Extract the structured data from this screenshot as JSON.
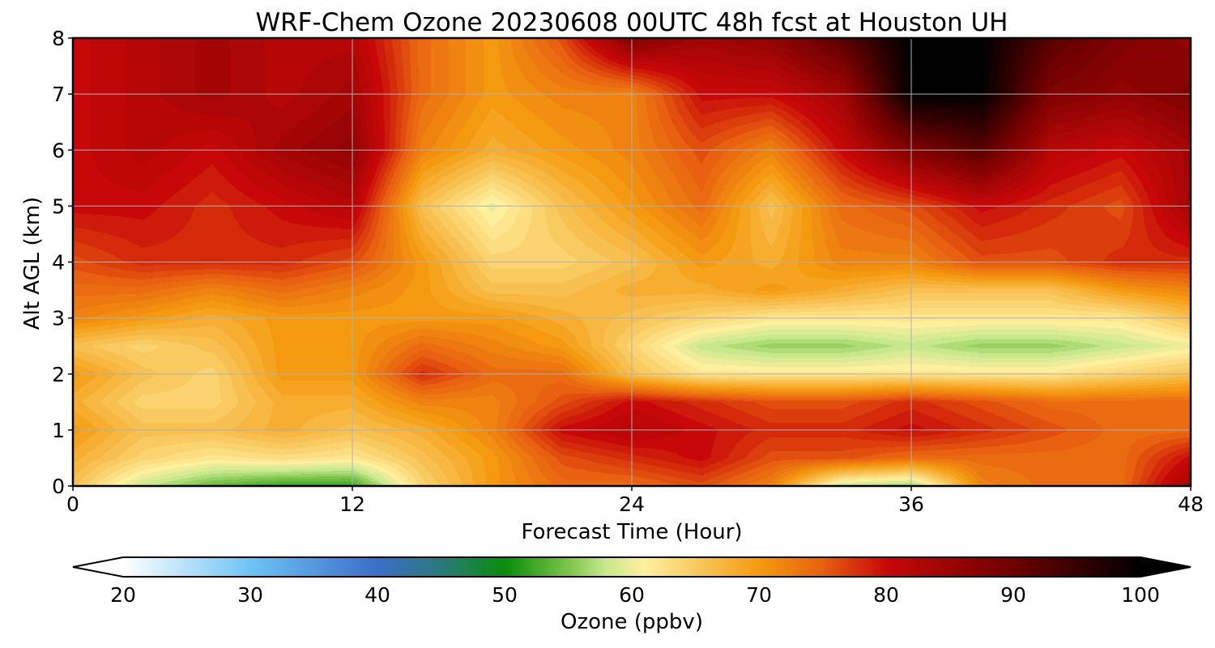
{
  "chart_data": {
    "type": "heatmap",
    "title": "WRF-Chem Ozone  20230608 00UTC 48h fcst at Houston UH",
    "xlabel": "Forecast Time (Hour)",
    "ylabel": "Alt AGL (km)",
    "xlim": [
      0,
      48
    ],
    "ylim": [
      0,
      8
    ],
    "xticks": [
      0,
      12,
      24,
      36,
      48
    ],
    "yticks": [
      0,
      1,
      2,
      3,
      4,
      5,
      6,
      7,
      8
    ],
    "grid": true,
    "x": [
      0,
      3,
      6,
      9,
      12,
      15,
      18,
      21,
      24,
      27,
      30,
      33,
      36,
      39,
      42,
      45,
      48
    ],
    "y": [
      0,
      0.5,
      1,
      1.5,
      2,
      2.5,
      3,
      3.5,
      4,
      5,
      6,
      7,
      8
    ],
    "z": [
      [
        66,
        58,
        54,
        52,
        52,
        64,
        70,
        74,
        74,
        76,
        72,
        58,
        56,
        72,
        74,
        74,
        84
      ],
      [
        68,
        64,
        62,
        63,
        62,
        66,
        70,
        76,
        78,
        80,
        76,
        76,
        74,
        74,
        74,
        74,
        80
      ],
      [
        70,
        66,
        66,
        68,
        66,
        68,
        72,
        80,
        82,
        80,
        78,
        78,
        80,
        78,
        76,
        74,
        74
      ],
      [
        68,
        64,
        64,
        68,
        68,
        72,
        72,
        76,
        80,
        78,
        76,
        76,
        78,
        76,
        74,
        74,
        74
      ],
      [
        70,
        66,
        64,
        70,
        70,
        78,
        74,
        74,
        66,
        62,
        62,
        62,
        62,
        62,
        62,
        64,
        66
      ],
      [
        66,
        64,
        66,
        70,
        70,
        74,
        72,
        70,
        64,
        58,
        56,
        56,
        58,
        56,
        56,
        58,
        60
      ],
      [
        72,
        70,
        68,
        70,
        70,
        70,
        70,
        68,
        66,
        64,
        62,
        62,
        62,
        62,
        62,
        62,
        66
      ],
      [
        74,
        74,
        72,
        74,
        72,
        70,
        66,
        66,
        68,
        68,
        70,
        68,
        66,
        66,
        66,
        70,
        72
      ],
      [
        76,
        78,
        78,
        78,
        76,
        70,
        64,
        64,
        66,
        70,
        68,
        72,
        72,
        76,
        76,
        78,
        78
      ],
      [
        80,
        80,
        78,
        80,
        82,
        66,
        60,
        66,
        70,
        74,
        66,
        74,
        76,
        80,
        78,
        76,
        84
      ],
      [
        80,
        82,
        80,
        84,
        86,
        72,
        68,
        70,
        72,
        76,
        72,
        80,
        88,
        92,
        82,
        80,
        84
      ],
      [
        80,
        82,
        84,
        82,
        84,
        74,
        70,
        72,
        72,
        80,
        80,
        84,
        100,
        100,
        88,
        86,
        88
      ],
      [
        80,
        82,
        84,
        82,
        82,
        74,
        70,
        76,
        88,
        84,
        86,
        92,
        100,
        100,
        92,
        88,
        86
      ]
    ],
    "colorbar": {
      "label": "Ozone  (ppbv)",
      "min": 20,
      "max": 100,
      "ticks": [
        20,
        30,
        40,
        50,
        60,
        70,
        80,
        90,
        100
      ],
      "extend": "both",
      "stops": [
        {
          "v": 20,
          "c": "#ffffff"
        },
        {
          "v": 30,
          "c": "#6ec3f5"
        },
        {
          "v": 40,
          "c": "#3b6ec8"
        },
        {
          "v": 45,
          "c": "#2a7a7a"
        },
        {
          "v": 50,
          "c": "#0a8c0a"
        },
        {
          "v": 55,
          "c": "#7cc44c"
        },
        {
          "v": 58,
          "c": "#c8e88c"
        },
        {
          "v": 61,
          "c": "#fff0a0"
        },
        {
          "v": 66,
          "c": "#f8c050"
        },
        {
          "v": 70,
          "c": "#f59a10"
        },
        {
          "v": 75,
          "c": "#e86010"
        },
        {
          "v": 80,
          "c": "#c80808"
        },
        {
          "v": 90,
          "c": "#6e0000"
        },
        {
          "v": 100,
          "c": "#000000"
        }
      ]
    }
  }
}
